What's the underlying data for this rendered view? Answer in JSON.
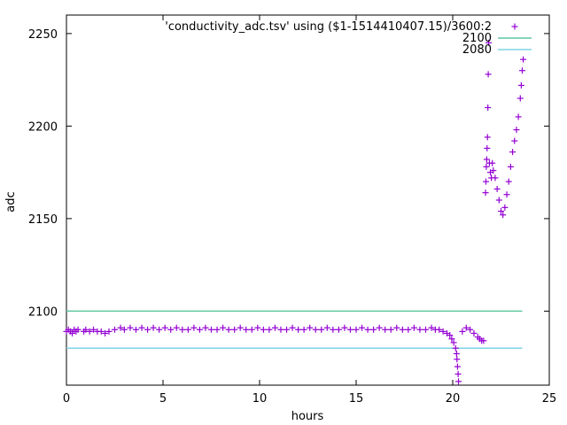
{
  "chart_data": {
    "type": "scatter",
    "xlabel": "hours",
    "ylabel": "adc",
    "xlim": [
      0,
      25
    ],
    "ylim": [
      2060,
      2260
    ],
    "xticks": [
      0,
      5,
      10,
      15,
      20,
      25
    ],
    "yticks": [
      2100,
      2150,
      2200,
      2250
    ],
    "legend_position": "top-right",
    "series": [
      {
        "name": "'conductivity_adc.tsv' using ($1-1514410407.15)/3600:2",
        "kind": "points",
        "marker": "plus",
        "color": "#9400d3",
        "points": [
          [
            0.0,
            2089
          ],
          [
            0.1,
            2090
          ],
          [
            0.2,
            2089
          ],
          [
            0.3,
            2088
          ],
          [
            0.4,
            2090
          ],
          [
            0.5,
            2089
          ],
          [
            0.6,
            2090
          ],
          [
            0.9,
            2089
          ],
          [
            1.0,
            2090
          ],
          [
            1.2,
            2089
          ],
          [
            1.4,
            2090
          ],
          [
            1.6,
            2089
          ],
          [
            1.8,
            2089
          ],
          [
            2.0,
            2088
          ],
          [
            2.2,
            2089
          ],
          [
            2.5,
            2090
          ],
          [
            2.8,
            2091
          ],
          [
            3.0,
            2090
          ],
          [
            3.3,
            2091
          ],
          [
            3.6,
            2090
          ],
          [
            3.9,
            2091
          ],
          [
            4.2,
            2090
          ],
          [
            4.5,
            2091
          ],
          [
            4.8,
            2090
          ],
          [
            5.1,
            2091
          ],
          [
            5.4,
            2090
          ],
          [
            5.7,
            2091
          ],
          [
            6.0,
            2090
          ],
          [
            6.3,
            2090
          ],
          [
            6.6,
            2091
          ],
          [
            6.9,
            2090
          ],
          [
            7.2,
            2091
          ],
          [
            7.5,
            2090
          ],
          [
            7.8,
            2090
          ],
          [
            8.1,
            2091
          ],
          [
            8.4,
            2090
          ],
          [
            8.7,
            2090
          ],
          [
            9.0,
            2091
          ],
          [
            9.3,
            2090
          ],
          [
            9.6,
            2090
          ],
          [
            9.9,
            2091
          ],
          [
            10.2,
            2090
          ],
          [
            10.5,
            2090
          ],
          [
            10.8,
            2091
          ],
          [
            11.1,
            2090
          ],
          [
            11.4,
            2090
          ],
          [
            11.7,
            2091
          ],
          [
            12.0,
            2090
          ],
          [
            12.3,
            2090
          ],
          [
            12.6,
            2091
          ],
          [
            12.9,
            2090
          ],
          [
            13.2,
            2090
          ],
          [
            13.5,
            2091
          ],
          [
            13.8,
            2090
          ],
          [
            14.1,
            2090
          ],
          [
            14.4,
            2091
          ],
          [
            14.7,
            2090
          ],
          [
            15.0,
            2090
          ],
          [
            15.3,
            2091
          ],
          [
            15.6,
            2090
          ],
          [
            15.9,
            2090
          ],
          [
            16.2,
            2091
          ],
          [
            16.5,
            2090
          ],
          [
            16.8,
            2090
          ],
          [
            17.1,
            2091
          ],
          [
            17.4,
            2090
          ],
          [
            17.7,
            2090
          ],
          [
            18.0,
            2091
          ],
          [
            18.3,
            2090
          ],
          [
            18.6,
            2090
          ],
          [
            18.9,
            2091
          ],
          [
            19.1,
            2090
          ],
          [
            19.3,
            2090
          ],
          [
            19.5,
            2089
          ],
          [
            19.7,
            2088
          ],
          [
            19.85,
            2087
          ],
          [
            19.95,
            2085
          ],
          [
            20.05,
            2083
          ],
          [
            20.15,
            2080
          ],
          [
            20.2,
            2077
          ],
          [
            20.22,
            2074
          ],
          [
            20.25,
            2070
          ],
          [
            20.28,
            2066
          ],
          [
            20.3,
            2062
          ],
          [
            20.5,
            2089
          ],
          [
            20.7,
            2091
          ],
          [
            20.9,
            2090
          ],
          [
            21.1,
            2088
          ],
          [
            21.3,
            2086
          ],
          [
            21.4,
            2085
          ],
          [
            21.5,
            2084
          ],
          [
            21.6,
            2084
          ],
          [
            21.7,
            2164
          ],
          [
            21.72,
            2170
          ],
          [
            21.74,
            2178
          ],
          [
            21.76,
            2182
          ],
          [
            21.78,
            2188
          ],
          [
            21.8,
            2194
          ],
          [
            21.82,
            2210
          ],
          [
            21.84,
            2228
          ],
          [
            21.86,
            2245
          ],
          [
            21.9,
            2180
          ],
          [
            21.95,
            2175
          ],
          [
            22.0,
            2172
          ],
          [
            22.05,
            2180
          ],
          [
            22.1,
            2176
          ],
          [
            22.2,
            2172
          ],
          [
            22.3,
            2166
          ],
          [
            22.4,
            2160
          ],
          [
            22.5,
            2154
          ],
          [
            22.6,
            2152
          ],
          [
            22.7,
            2156
          ],
          [
            22.8,
            2163
          ],
          [
            22.9,
            2170
          ],
          [
            23.0,
            2178
          ],
          [
            23.1,
            2186
          ],
          [
            23.2,
            2192
          ],
          [
            23.3,
            2198
          ],
          [
            23.4,
            2205
          ],
          [
            23.5,
            2215
          ],
          [
            23.55,
            2222
          ],
          [
            23.6,
            2230
          ],
          [
            23.65,
            2236
          ]
        ]
      },
      {
        "name": "2100",
        "kind": "line",
        "color": "#5fc9a0",
        "y": 2100,
        "x_range": [
          0,
          23.6
        ]
      },
      {
        "name": "2080",
        "kind": "line",
        "color": "#7fd3e6",
        "y": 2080,
        "x_range": [
          0,
          23.6
        ]
      }
    ]
  }
}
